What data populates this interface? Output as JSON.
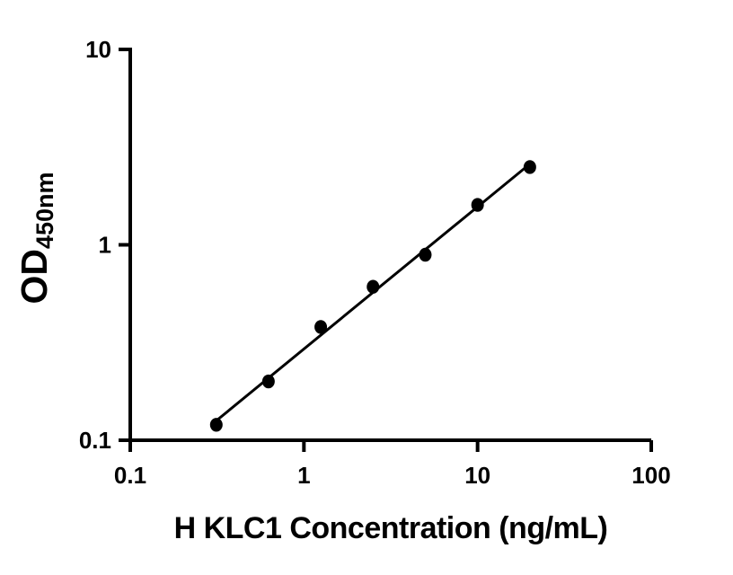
{
  "figure": {
    "background_color": "#ffffff",
    "foreground_color": "#000000"
  },
  "chart_data": {
    "type": "scatter",
    "title": "",
    "xlabel": "H KLC1 Concentration (ng/mL)",
    "ylabel": "OD450nm",
    "ylabel_main": "OD",
    "ylabel_sub": "450nm",
    "x_scale": "log10",
    "y_scale": "log10",
    "xlim": [
      0.1,
      100
    ],
    "ylim": [
      0.1,
      10
    ],
    "x_ticks": [
      {
        "value": 0.1,
        "label": "0.1"
      },
      {
        "value": 1,
        "label": "1"
      },
      {
        "value": 10,
        "label": "10"
      },
      {
        "value": 100,
        "label": "100"
      }
    ],
    "y_ticks": [
      {
        "value": 0.1,
        "label": "0.1"
      },
      {
        "value": 1,
        "label": "1"
      },
      {
        "value": 10,
        "label": "10"
      }
    ],
    "grid": false,
    "legend": false,
    "marker": "filled-circle",
    "marker_color": "#000000",
    "trend_line_color": "#000000",
    "trend_line": "straight least-squares fit segment in log-log space from first to last point",
    "points": [
      {
        "x": 0.313,
        "y": 0.12
      },
      {
        "x": 0.625,
        "y": 0.2
      },
      {
        "x": 1.25,
        "y": 0.38
      },
      {
        "x": 2.5,
        "y": 0.61
      },
      {
        "x": 5,
        "y": 0.89
      },
      {
        "x": 10,
        "y": 1.6
      },
      {
        "x": 20,
        "y": 2.5
      }
    ]
  }
}
